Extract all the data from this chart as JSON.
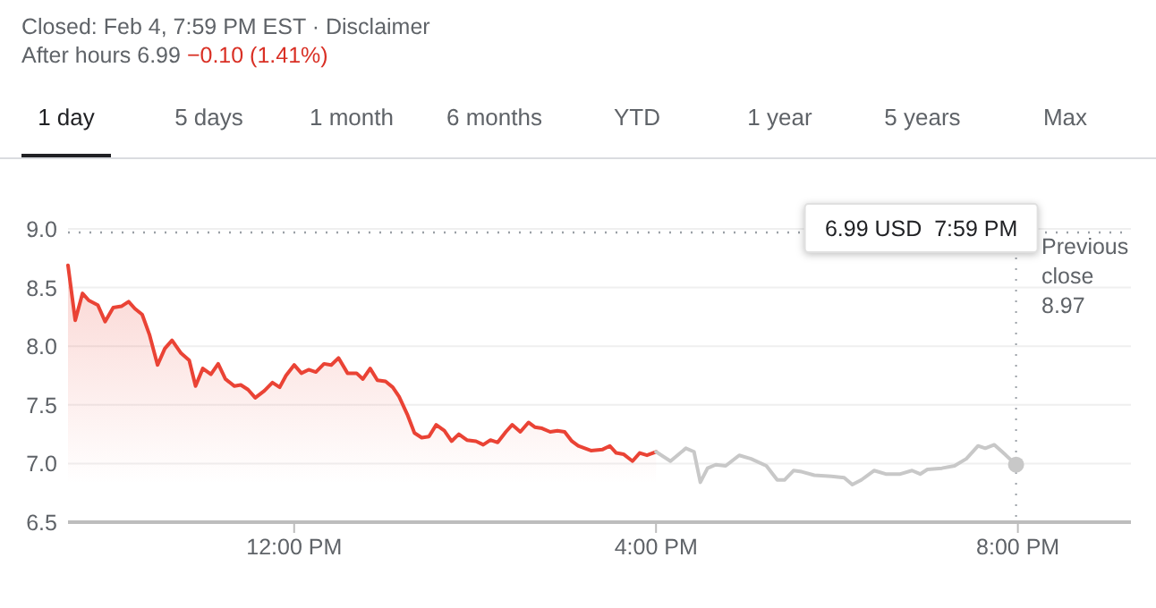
{
  "chart_data": {
    "type": "line",
    "title": "Closed: Feb 4, 7:59 PM EST · Disclaimer",
    "annotations": [
      "After hours 6.99",
      "−0.10 (1.41%)",
      "1 day",
      "5 days",
      "1 month",
      "6 months",
      "YTD",
      "1 year",
      "5 years",
      "Max",
      "6.99 USD  7:59 PM"
    ],
    "xlim": [
      9.5,
      21.25
    ],
    "xticks": [
      {
        "value": 12,
        "label": "12:00 PM"
      },
      {
        "value": 16,
        "label": "4:00 PM"
      },
      {
        "value": 20,
        "label": "8:00 PM"
      }
    ],
    "ylim": [
      6.5,
      9.0
    ],
    "yticks": [
      {
        "value": 6.5,
        "label": "6.5"
      },
      {
        "value": 7,
        "label": "7.0"
      },
      {
        "value": 7.5,
        "label": "7.5"
      },
      {
        "value": 8,
        "label": "8.0"
      },
      {
        "value": 8.5,
        "label": "8.5"
      },
      {
        "value": 9,
        "label": "9.0"
      }
    ],
    "grid": "y",
    "marker": "none",
    "line_style": "solid",
    "ref_lines": [
      {
        "axis": "y",
        "value": 8.97,
        "label": "Previous close 8.97",
        "color": "#9aa0a6",
        "line_style": "dotted"
      },
      {
        "axis": "x",
        "value": 19.98,
        "label": null,
        "color": "#9aa0a6",
        "line_style": "dotted"
      }
    ],
    "series": [
      {
        "type": "area",
        "color": "#ea4335",
        "x": [
          9.5,
          9.58,
          9.66,
          9.73,
          9.83,
          9.91,
          10.0,
          10.09,
          10.17,
          10.24,
          10.32,
          10.4,
          10.49,
          10.57,
          10.65,
          10.75,
          10.84,
          10.91,
          10.99,
          11.08,
          11.16,
          11.24,
          11.34,
          11.41,
          11.49,
          11.57,
          11.67,
          11.76,
          11.84,
          11.91,
          12.0,
          12.08,
          12.16,
          12.24,
          12.33,
          12.41,
          12.49,
          12.59,
          12.69,
          12.76,
          12.84,
          12.92,
          13.01,
          13.09,
          13.16,
          13.25,
          13.33,
          13.41,
          13.49,
          13.57,
          13.66,
          13.74,
          13.82,
          13.91,
          14.01,
          14.09,
          14.17,
          14.25,
          14.34,
          14.41,
          14.5,
          14.59,
          14.66,
          14.74,
          14.83,
          14.91,
          14.99,
          15.07,
          15.14,
          15.28,
          15.41,
          15.49,
          15.56,
          15.64,
          15.74,
          15.82,
          15.9,
          16.0
        ],
        "values": [
          8.69,
          8.22,
          8.45,
          8.39,
          8.35,
          8.21,
          8.33,
          8.34,
          8.38,
          8.32,
          8.27,
          8.1,
          7.84,
          7.98,
          8.05,
          7.94,
          7.88,
          7.66,
          7.81,
          7.76,
          7.85,
          7.72,
          7.66,
          7.67,
          7.63,
          7.56,
          7.62,
          7.69,
          7.65,
          7.75,
          7.84,
          7.77,
          7.8,
          7.78,
          7.85,
          7.84,
          7.9,
          7.77,
          7.77,
          7.72,
          7.81,
          7.71,
          7.7,
          7.65,
          7.57,
          7.42,
          7.26,
          7.22,
          7.23,
          7.33,
          7.28,
          7.19,
          7.25,
          7.2,
          7.19,
          7.16,
          7.2,
          7.18,
          7.27,
          7.33,
          7.27,
          7.35,
          7.31,
          7.3,
          7.27,
          7.28,
          7.27,
          7.19,
          7.15,
          7.11,
          7.12,
          7.15,
          7.09,
          7.08,
          7.02,
          7.09,
          7.07,
          7.1
        ]
      },
      {
        "color": "#c8c8c8",
        "x": [
          16.0,
          16.16,
          16.33,
          16.42,
          16.49,
          16.57,
          16.66,
          16.77,
          16.92,
          17.05,
          17.22,
          17.34,
          17.42,
          17.52,
          17.61,
          17.75,
          17.94,
          18.08,
          18.17,
          18.27,
          18.41,
          18.54,
          18.7,
          18.83,
          18.92,
          19.0,
          19.16,
          19.3,
          19.43,
          19.56,
          19.64,
          19.74,
          19.84,
          19.98
        ],
        "values": [
          7.1,
          7.02,
          7.13,
          7.1,
          6.84,
          6.96,
          6.99,
          6.98,
          7.07,
          7.04,
          6.98,
          6.86,
          6.86,
          6.94,
          6.93,
          6.9,
          6.89,
          6.88,
          6.82,
          6.86,
          6.94,
          6.91,
          6.91,
          6.94,
          6.91,
          6.95,
          6.96,
          6.98,
          7.04,
          7.15,
          7.13,
          7.16,
          7.09,
          6.99
        ]
      },
      {
        "type": "scatter",
        "color": "#c8c8c8",
        "marker": "circle",
        "x": [
          19.98
        ],
        "values": [
          6.99
        ]
      }
    ]
  }
}
